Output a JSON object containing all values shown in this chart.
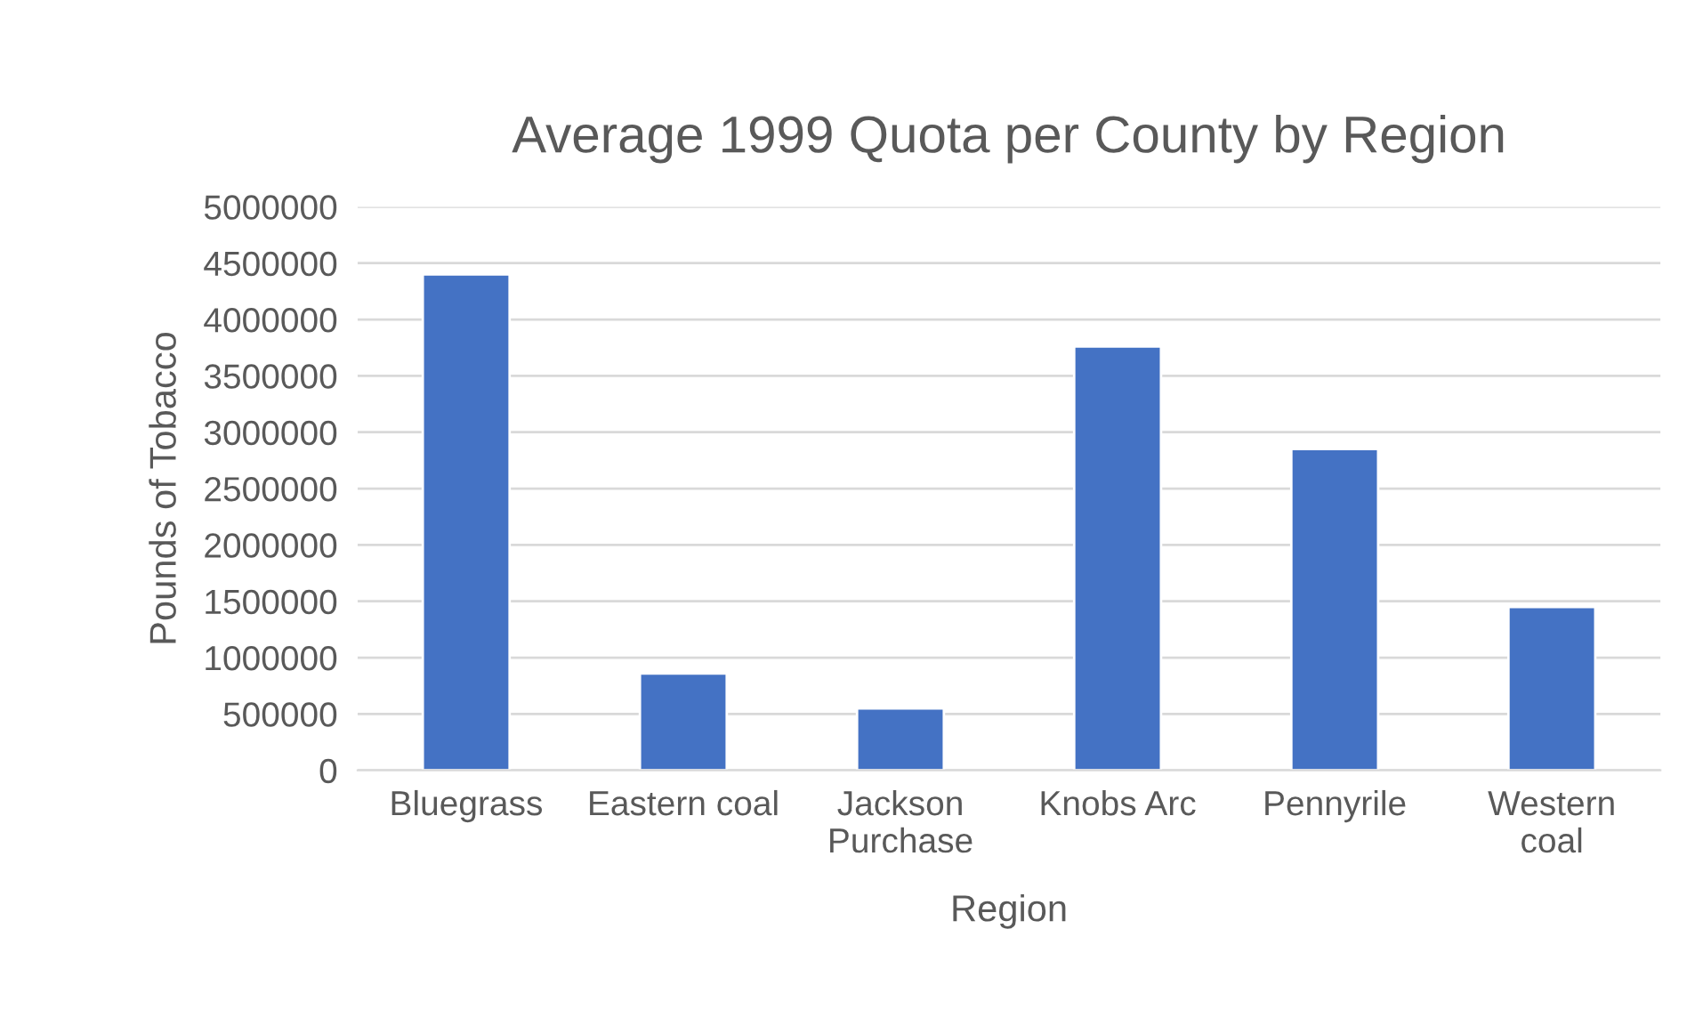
{
  "chart_data": {
    "type": "bar",
    "title": "Average 1999 Quota per County by Region",
    "xlabel": "Region",
    "ylabel": "Pounds of Tobacco",
    "categories": [
      "Bluegrass",
      "Eastern coal",
      "Jackson\nPurchase",
      "Knobs Arc",
      "Pennyrile",
      "Western\ncoal"
    ],
    "values": [
      4400000,
      860000,
      550000,
      3760000,
      2850000,
      1450000
    ],
    "color": "#4472c4",
    "ylim": [
      0,
      5000000
    ],
    "yticks": [
      0,
      500000,
      1000000,
      1500000,
      2000000,
      2500000,
      3000000,
      3500000,
      4000000,
      4500000,
      5000000
    ],
    "grid": "y"
  }
}
